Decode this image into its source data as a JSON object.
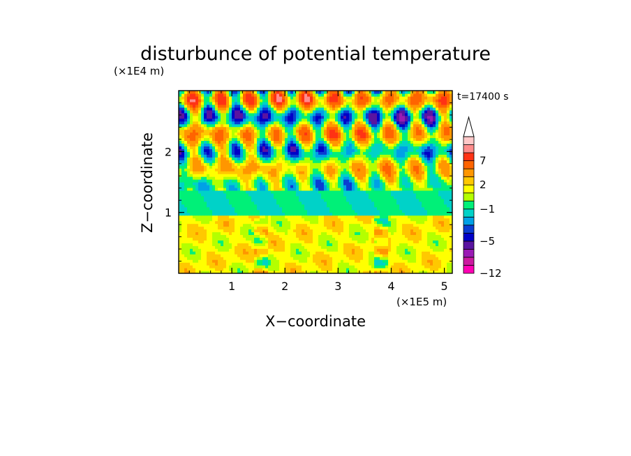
{
  "chart_data": {
    "type": "heatmap",
    "title": "disturbunce of potential temperature",
    "y_unit_label": "(×1E4 m)",
    "x_unit_label": "(×1E5 m)",
    "xlabel": "X−coordinate",
    "ylabel": "Z−coordinate",
    "time_label": "t=17400 s",
    "xlim": [
      0,
      5.15
    ],
    "ylim": [
      0,
      3.0
    ],
    "x_ticks": [
      1,
      2,
      3,
      4,
      5
    ],
    "y_ticks": [
      1,
      2
    ],
    "x_tick_labels": [
      "1",
      "2",
      "3",
      "4",
      "5"
    ],
    "y_tick_labels": [
      "1",
      "2"
    ],
    "colorbar": {
      "levels": [
        -12,
        -11,
        -9,
        -7,
        -5,
        -4,
        -3,
        -2,
        -1,
        0,
        1,
        2,
        3,
        5,
        7,
        9,
        11
      ],
      "colors": [
        "#ff00b4",
        "#cc1aa0",
        "#9a1ab4",
        "#5a14a0",
        "#0000c8",
        "#0a3cd2",
        "#00a0e6",
        "#00d2c8",
        "#00f078",
        "#b4ff00",
        "#ffff00",
        "#ffc800",
        "#ff9600",
        "#ff6400",
        "#ff3214",
        "#ff8c8c",
        "#ffc8c8"
      ],
      "over_color": "#ffffff",
      "tick_labels": [
        "7",
        "2",
        "−1",
        "−5",
        "−12"
      ],
      "tick_values": [
        7,
        2,
        -1,
        -5,
        -12
      ]
    },
    "field_description_values": {
      "lower_layer_z_range": [
        0,
        0.95
      ],
      "lower_layer_level": 1.5,
      "middle_band_z_range": [
        0.95,
        1.35
      ],
      "middle_band_level": -1,
      "upper_layer_z_range": [
        1.35,
        3.0
      ],
      "upper_min_level": -9
    }
  }
}
